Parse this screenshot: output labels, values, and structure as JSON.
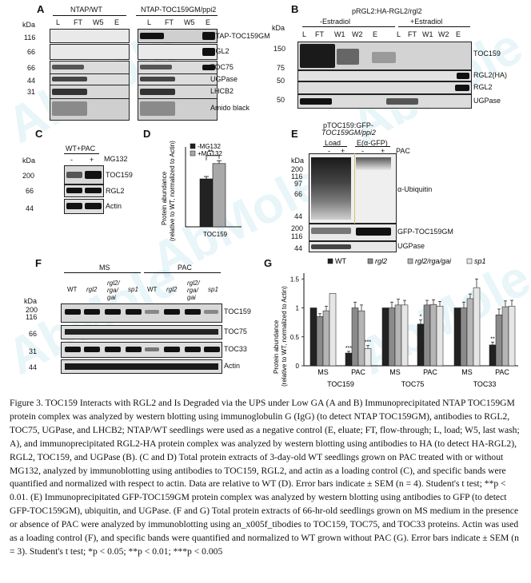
{
  "panels": {
    "A": {
      "letter": "A",
      "kda": "kDa",
      "group1": "NTAP/WT",
      "group2": "NTAP-TOC159GM/ppi2",
      "lanes": [
        "L",
        "FT",
        "W5",
        "E"
      ],
      "markers": [
        "116",
        "66",
        "66",
        "44",
        "31"
      ],
      "rows": [
        "NTAP-TOC159GM",
        "RGL2",
        "TOC75",
        "UGPase",
        "LHCB2",
        "Amido black"
      ]
    },
    "B": {
      "letter": "B",
      "kda": "kDa",
      "title": "pRGL2:HA-RGL2/rgl2",
      "group1": "-Estradiol",
      "group2": "+Estradiol",
      "lanes": [
        "L",
        "FT",
        "W1",
        "W2",
        "E",
        "L",
        "FT",
        "W1",
        "W2",
        "E"
      ],
      "markers": [
        "150",
        "75",
        "50",
        "50"
      ],
      "rows": [
        "TOC159",
        "RGL2(HA)",
        "RGL2",
        "UGPase"
      ]
    },
    "C": {
      "letter": "C",
      "kda": "kDa",
      "group": "WT+PAC",
      "lanes": [
        "-",
        "+"
      ],
      "treatment": "MG132",
      "markers": [
        "200",
        "66",
        "44"
      ],
      "rows": [
        "TOC159",
        "RGL2",
        "Actin"
      ]
    },
    "D": {
      "letter": "D",
      "ylabel1": "Protein abundance",
      "ylabel2": "(relative to WT, normalized to Actin)",
      "legend": [
        "-MG132",
        "+MG132"
      ],
      "xlabel": "TOC159",
      "sig": "**"
    },
    "E": {
      "letter": "E",
      "title1": "pTOC159:GFP-",
      "title2": "TOC159GM/ppi2",
      "group1": "Load",
      "group2": "E(α-GFP)",
      "lanes": [
        "-",
        "+",
        "-",
        "+"
      ],
      "treatment": "PAC",
      "kda": "kDa",
      "markers": [
        "200",
        "116",
        "97",
        "66",
        "44",
        "200",
        "116",
        "44"
      ],
      "rows": [
        "α-Ubiquitin",
        "GFP-TOC159GM",
        "UGPase"
      ]
    },
    "F": {
      "letter": "F",
      "group1": "MS",
      "group2": "PAC",
      "lanes": [
        "WT",
        "rgl2",
        "rgl2/\nrga/\ngai",
        "sp1",
        "WT",
        "rgl2",
        "rgl2/\nrga/\ngai",
        "sp1"
      ],
      "lane_lines": [
        [
          "WT"
        ],
        [
          "rgl2"
        ],
        [
          "rgl2/",
          "rga/",
          "gai"
        ],
        [
          "sp1"
        ],
        [
          "WT"
        ],
        [
          "rgl2"
        ],
        [
          "rgl2/",
          "rga/",
          "gai"
        ],
        [
          "sp1"
        ]
      ],
      "kda": "kDa",
      "markers": [
        "200",
        "116",
        "66",
        "31",
        "44"
      ],
      "rows": [
        "TOC159",
        "TOC75",
        "TOC33",
        "Actin"
      ]
    },
    "G": {
      "letter": "G",
      "ylabel1": "Protein abundance",
      "ylabel2": "(relative to WT, normalized to Actin)",
      "legend": [
        "WT",
        "rgl2",
        "rgl2/rga/gai",
        "sp1"
      ]
    }
  },
  "chart_data": [
    {
      "type": "bar",
      "panel": "D",
      "categories": [
        "TOC159"
      ],
      "series": [
        {
          "name": "-MG132",
          "values": [
            1.0
          ],
          "err": [
            0.05
          ]
        },
        {
          "name": "+MG132",
          "values": [
            1.32
          ],
          "err": [
            0.06
          ]
        }
      ],
      "xlabel": "TOC159",
      "ylabel": "Protein abundance (relative to WT, normalized to Actin)",
      "annotations": [
        "**"
      ],
      "colors": [
        "#222222",
        "#a8a8a8"
      ]
    },
    {
      "type": "bar",
      "panel": "G",
      "groups": [
        "TOC159",
        "TOC75",
        "TOC33"
      ],
      "conditions": [
        "MS",
        "PAC"
      ],
      "categories": [
        "MS",
        "PAC",
        "MS",
        "PAC",
        "MS",
        "PAC"
      ],
      "series": [
        {
          "name": "WT",
          "values": [
            1.0,
            0.22,
            1.0,
            0.72,
            1.0,
            0.36
          ],
          "err": [
            0.0,
            0.03,
            0.0,
            0.07,
            0.0,
            0.05
          ]
        },
        {
          "name": "rgl2",
          "values": [
            0.85,
            1.0,
            1.0,
            1.05,
            1.0,
            0.88
          ],
          "err": [
            0.05,
            0.1,
            0.1,
            0.08,
            0.1,
            0.1
          ]
        },
        {
          "name": "rgl2/rga/gai",
          "values": [
            0.95,
            0.95,
            1.05,
            1.06,
            1.16,
            1.02
          ],
          "err": [
            0.08,
            0.1,
            0.1,
            0.08,
            0.08,
            0.1
          ]
        },
        {
          "name": "sp1",
          "values": [
            1.25,
            0.3,
            1.05,
            1.03,
            1.35,
            1.03
          ],
          "err": [
            0.0,
            0.05,
            0.08,
            0.08,
            0.15,
            0.1
          ]
        }
      ],
      "sig": {
        "TOC159-PAC-WT": "***",
        "TOC159-PAC-sp1": "***",
        "TOC75-PAC-WT": "*",
        "TOC33-PAC-WT": "**"
      },
      "ylim": [
        0,
        1.6
      ],
      "yticks": [
        "0",
        "0.5",
        "1",
        "1.5"
      ],
      "ylabel": "Protein abundance (relative to WT, normalized to Actin)",
      "colors": [
        "#222222",
        "#8a8a8a",
        "#b5b5b5",
        "#e6e6e6"
      ]
    }
  ],
  "caption": "Figure 3. TOC159 Interacts with RGL2 and Is Degraded via the UPS under Low GA (A and B) Immunoprecipitated NTAP TOC159GM protein complex was analyzed by western blotting using immunoglobulin G (IgG) (to detect NTAP TOC159GM), antibodies to RGL2, TOC75, UGPase, and LHCB2; NTAP/WT seedlings were used as a negative control (E, eluate; FT, flow-through; L, load; W5, last wash; A), and immunoprecipitated RGL2-HA protein complex was analyzed by western blotting using antibodies to HA (to detect HA-RGL2), RGL2, TOC159, and UGPase (B). (C and D) Total protein extracts of 3-day-old WT seedlings grown on PAC treated with or without MG132, analyzed by immunoblotting using antibodies to TOC159, RGL2, and actin as a loading control (C), and specific bands were quantified and normalized with respect to actin. Data are relative to WT (D). Error bars indicate ± SEM (n = 4). Student's t test; **p < 0.01. (E) Immunoprecipitated GFP-TOC159GM protein complex was analyzed by western blotting using antibodies to GFP (to detect GFP-TOC159GM), ubiquitin, and UGPase. (F and G) Total protein extracts of 66-hr-old seedlings grown on MS medium in the presence or absence of PAC were analyzed by immunoblotting using an_x005f_tibodies to TOC159, TOC75, and TOC33 proteins. Actin was used as a loading control (F), and specific bands were quantified and normalized to WT grown without PAC (G). Error bars indicate ± SEM (n = 3). Student's t test; *p < 0.05; **p < 0.01; ***p < 0.005",
  "watermark": "AbMole"
}
